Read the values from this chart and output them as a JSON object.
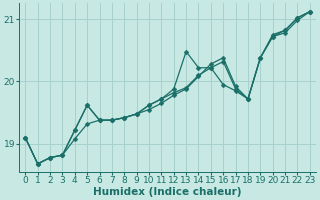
{
  "title": "",
  "xlabel": "Humidex (Indice chaleur)",
  "bg_color": "#c8e8e4",
  "line_color": "#1a7068",
  "grid_color": "#a8d0cc",
  "ylim": [
    18.55,
    21.25
  ],
  "xlim": [
    -0.5,
    23.5
  ],
  "yticks": [
    19,
    20,
    21
  ],
  "xticks": [
    0,
    1,
    2,
    3,
    4,
    5,
    6,
    7,
    8,
    9,
    10,
    11,
    12,
    13,
    14,
    15,
    16,
    17,
    18,
    19,
    20,
    21,
    22,
    23
  ],
  "line1_x": [
    0,
    1,
    2,
    3,
    4,
    5,
    6,
    7,
    8,
    9,
    10,
    11,
    12,
    13,
    14,
    15,
    16,
    17,
    18,
    19,
    20,
    21,
    22,
    23
  ],
  "line1_y": [
    19.1,
    18.68,
    18.78,
    18.82,
    19.22,
    19.62,
    19.38,
    19.38,
    19.42,
    19.48,
    19.62,
    19.72,
    19.82,
    19.9,
    20.1,
    20.22,
    20.32,
    19.88,
    19.72,
    20.38,
    20.72,
    20.82,
    21.02,
    21.12
  ],
  "line2_x": [
    0,
    1,
    2,
    3,
    4,
    5,
    6,
    7,
    8,
    9,
    10,
    11,
    12,
    13,
    14,
    15,
    16,
    17,
    18,
    19,
    20,
    21,
    22,
    23
  ],
  "line2_y": [
    19.1,
    18.68,
    18.78,
    18.82,
    19.22,
    19.62,
    19.38,
    19.38,
    19.42,
    19.48,
    19.62,
    19.72,
    19.88,
    20.48,
    20.22,
    20.22,
    19.95,
    19.85,
    19.72,
    20.38,
    20.75,
    20.82,
    21.02,
    21.12
  ],
  "line3_x": [
    0,
    1,
    2,
    3,
    4,
    5,
    6,
    7,
    8,
    9,
    10,
    11,
    12,
    13,
    14,
    15,
    16,
    17,
    18,
    19,
    20,
    21,
    22,
    23
  ],
  "line3_y": [
    19.1,
    18.68,
    18.78,
    18.82,
    19.08,
    19.32,
    19.38,
    19.38,
    19.42,
    19.48,
    19.55,
    19.65,
    19.78,
    19.88,
    20.08,
    20.28,
    20.38,
    19.92,
    19.72,
    20.38,
    20.72,
    20.78,
    20.98,
    21.12
  ],
  "marker": "D",
  "markersize": 2.5,
  "linewidth": 0.9,
  "xlabel_fontsize": 7.5,
  "tick_fontsize": 6.5
}
